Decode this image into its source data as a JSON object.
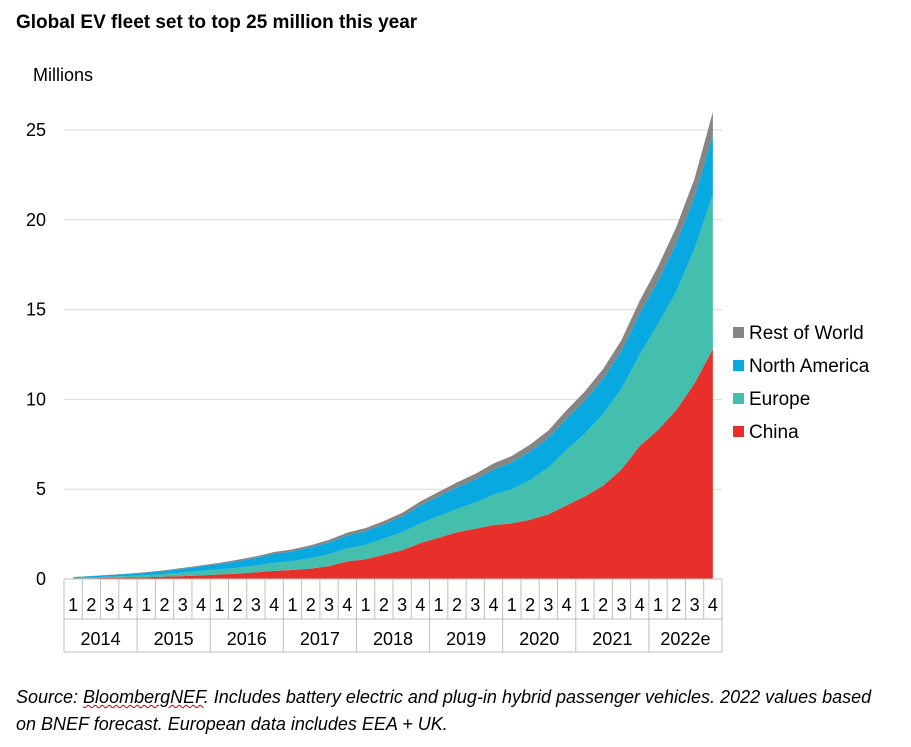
{
  "title": "Global EV fleet set to top 25 million this year",
  "source": {
    "prefix": "Source: ",
    "brand": "BloombergNEF",
    "rest": ". Includes battery electric and plug-in hybrid passenger vehicles. 2022 values based on BNEF forecast. European data includes EEA + UK."
  },
  "chart_data": {
    "type": "area",
    "stacked": true,
    "ylabel": "Millions",
    "ylim": [
      0,
      25
    ],
    "yticks": [
      0,
      5,
      10,
      15,
      20,
      25
    ],
    "grid": true,
    "legend_position": "right",
    "quarters": [
      "1",
      "2",
      "3",
      "4",
      "1",
      "2",
      "3",
      "4",
      "1",
      "2",
      "3",
      "4",
      "1",
      "2",
      "3",
      "4",
      "1",
      "2",
      "3",
      "4",
      "1",
      "2",
      "3",
      "4",
      "1",
      "2",
      "3",
      "4",
      "1",
      "2",
      "3",
      "4",
      "1",
      "2",
      "3",
      "4"
    ],
    "years": [
      "2014",
      "2015",
      "2016",
      "2017",
      "2018",
      "2019",
      "2020",
      "2021",
      "2022e"
    ],
    "legend_order": [
      "Rest of World",
      "North America",
      "Europe",
      "China"
    ],
    "series": [
      {
        "name": "China",
        "color": "#e8302a",
        "values": [
          0.02,
          0.04,
          0.06,
          0.08,
          0.1,
          0.13,
          0.16,
          0.2,
          0.25,
          0.3,
          0.37,
          0.45,
          0.5,
          0.58,
          0.72,
          0.98,
          1.1,
          1.35,
          1.6,
          2.0,
          2.3,
          2.6,
          2.8,
          3.0,
          3.1,
          3.3,
          3.6,
          4.1,
          4.6,
          5.2,
          6.1,
          7.4,
          8.3,
          9.4,
          10.9,
          12.8
        ]
      },
      {
        "name": "Europe",
        "color": "#44bfad",
        "values": [
          0.03,
          0.05,
          0.07,
          0.09,
          0.11,
          0.15,
          0.2,
          0.25,
          0.28,
          0.33,
          0.38,
          0.45,
          0.5,
          0.58,
          0.66,
          0.72,
          0.8,
          0.9,
          1.0,
          1.1,
          1.2,
          1.3,
          1.45,
          1.7,
          1.9,
          2.2,
          2.6,
          3.1,
          3.5,
          4.0,
          4.5,
          5.1,
          5.9,
          6.6,
          7.5,
          8.6
        ]
      },
      {
        "name": "North America",
        "color": "#08a9e0",
        "values": [
          0.05,
          0.07,
          0.09,
          0.11,
          0.14,
          0.17,
          0.21,
          0.25,
          0.3,
          0.36,
          0.42,
          0.5,
          0.54,
          0.6,
          0.66,
          0.72,
          0.76,
          0.8,
          0.88,
          1.0,
          1.1,
          1.2,
          1.3,
          1.4,
          1.5,
          1.6,
          1.65,
          1.75,
          1.85,
          1.95,
          2.1,
          2.3,
          2.4,
          2.7,
          2.9,
          3.3
        ]
      },
      {
        "name": "Rest of World",
        "color": "#858585",
        "values": [
          0.01,
          0.01,
          0.02,
          0.02,
          0.03,
          0.04,
          0.05,
          0.06,
          0.07,
          0.08,
          0.09,
          0.1,
          0.11,
          0.12,
          0.14,
          0.16,
          0.17,
          0.18,
          0.2,
          0.22,
          0.25,
          0.28,
          0.3,
          0.33,
          0.35,
          0.38,
          0.42,
          0.45,
          0.5,
          0.55,
          0.6,
          0.7,
          0.8,
          0.9,
          1.0,
          1.3
        ]
      }
    ]
  }
}
